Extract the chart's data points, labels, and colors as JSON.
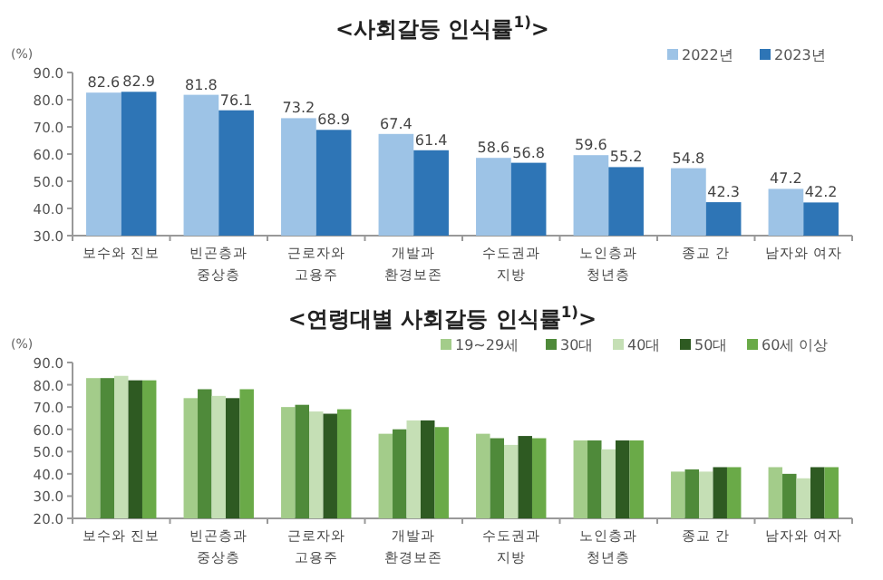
{
  "chart_data": [
    {
      "type": "bar",
      "title": "<사회갈등 인식률$^{1)}$>",
      "ylabel": "(%)",
      "categories": [
        "보수와 진보",
        "빈곤층과\n중상층",
        "근로자와\n고용주",
        "개발과\n환경보존",
        "수도권과\n지방",
        "노인층과\n청년층",
        "종교 간",
        "남자와 여자"
      ],
      "series": [
        {
          "name": "2022년",
          "color": "#9dc3e6",
          "values": [
            82.6,
            81.8,
            73.2,
            67.4,
            58.6,
            59.6,
            54.8,
            47.2
          ]
        },
        {
          "name": "2023년",
          "color": "#2e75b6",
          "values": [
            82.9,
            76.1,
            68.9,
            61.4,
            56.8,
            55.2,
            42.3,
            42.2
          ]
        }
      ],
      "ylim": [
        30,
        90
      ],
      "yticks": [
        {
          "value": 30,
          "label": "30.0"
        },
        {
          "value": 40,
          "label": "40.0"
        },
        {
          "value": 50,
          "label": "50.0"
        },
        {
          "value": 60,
          "label": "60.0"
        },
        {
          "value": 70,
          "label": "70.0"
        },
        {
          "value": 80,
          "label": "80.0"
        },
        {
          "value": 90,
          "label": "90.0"
        }
      ],
      "data_labels": true,
      "legend": "top right",
      "grid": false
    },
    {
      "type": "bar",
      "title": "<연령대별 사회갈등 인식률$^{1)}$>",
      "ylabel": "(%)",
      "categories": [
        "보수와 진보",
        "빈곤층과\n중상층",
        "근로자와\n고용주",
        "개발과\n환경보존",
        "수도권과\n지방",
        "노인층과\n청년층",
        "종교 간",
        "남자와 여자"
      ],
      "series": [
        {
          "name": "19~29세",
          "color": "#a3cc8a",
          "values": [
            83,
            74,
            70,
            58,
            58,
            55,
            41,
            43
          ]
        },
        {
          "name": "30대",
          "color": "#4f8a3a",
          "values": [
            83,
            78,
            71,
            60,
            56,
            55,
            42,
            40
          ]
        },
        {
          "name": "40대",
          "color": "#c5dfb5",
          "values": [
            84,
            75,
            68,
            64,
            53,
            51,
            41,
            38
          ]
        },
        {
          "name": "50대",
          "color": "#2e5a22",
          "values": [
            82,
            74,
            67,
            64,
            57,
            55,
            43,
            43
          ]
        },
        {
          "name": "60세 이상",
          "color": "#6aaa48",
          "values": [
            82,
            78,
            69,
            61,
            56,
            55,
            43,
            43
          ]
        }
      ],
      "ylim": [
        20,
        90
      ],
      "yticks": [
        {
          "value": 20,
          "label": "20.0"
        },
        {
          "value": 30,
          "label": "30.0"
        },
        {
          "value": 40,
          "label": "40.0"
        },
        {
          "value": 50,
          "label": "50.0"
        },
        {
          "value": 60,
          "label": "60.0"
        },
        {
          "value": 70,
          "label": "70.0"
        },
        {
          "value": 80,
          "label": "80.0"
        },
        {
          "value": 90,
          "label": "90.0"
        }
      ],
      "legend": "top right",
      "grid": false
    }
  ]
}
